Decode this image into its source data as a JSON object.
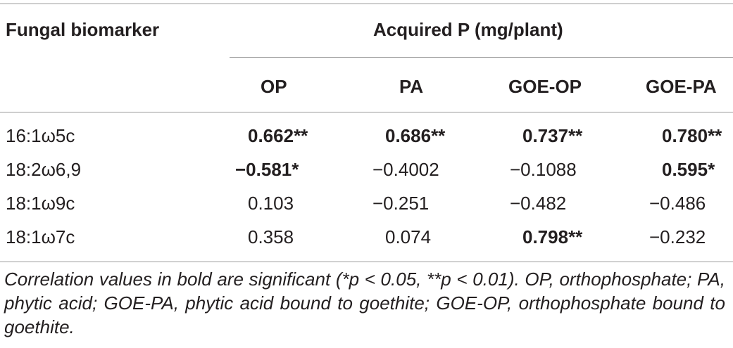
{
  "header": {
    "row_label": "Fungal biomarker",
    "group_label": "Acquired P (mg/plant)",
    "columns": [
      "OP",
      "PA",
      "GOE-OP",
      "GOE-PA"
    ]
  },
  "rows": [
    {
      "label": "16:1ω5c",
      "cells": [
        {
          "text": "0.662**",
          "bold": true
        },
        {
          "text": "0.686**",
          "bold": true
        },
        {
          "text": "0.737**",
          "bold": true
        },
        {
          "text": "0.780**",
          "bold": true
        }
      ]
    },
    {
      "label": "18:2ω6,9",
      "cells": [
        {
          "text": "−0.581*",
          "bold": true
        },
        {
          "text": "−0.4002",
          "bold": false
        },
        {
          "text": "−0.1088",
          "bold": false
        },
        {
          "text": "0.595*",
          "bold": true
        }
      ]
    },
    {
      "label": "18:1ω9c",
      "cells": [
        {
          "text": "0.103",
          "bold": false
        },
        {
          "text": "−0.251",
          "bold": false
        },
        {
          "text": "−0.482",
          "bold": false
        },
        {
          "text": "−0.486",
          "bold": false
        }
      ]
    },
    {
      "label": "18:1ω7c",
      "cells": [
        {
          "text": "0.358",
          "bold": false
        },
        {
          "text": "0.074",
          "bold": false
        },
        {
          "text": "0.798**",
          "bold": true
        },
        {
          "text": "−0.232",
          "bold": false
        }
      ]
    }
  ],
  "footnote": "Correlation values in bold are significant (*p < 0.05, **p < 0.01). OP, orthophosphate; PA, phytic acid; GOE-PA, phytic acid bound to goethite; GOE-OP, orthophosphate bound to goethite."
}
